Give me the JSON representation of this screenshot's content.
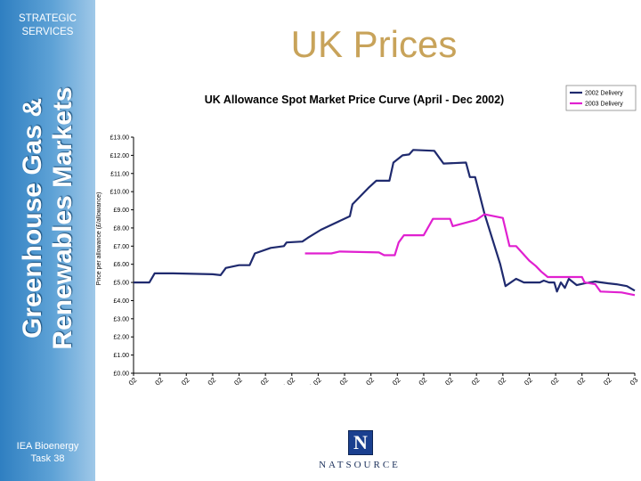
{
  "sidebar": {
    "top_label_line1": "STRATEGIC",
    "top_label_line2": "SERVICES",
    "vertical_title_line1": "Greenhouse Gas &",
    "vertical_title_line2": "Renewables Markets",
    "bottom_label_line1": "IEA Bioenergy",
    "bottom_label_line2": "Task 38"
  },
  "slide_title": "UK Prices",
  "logo": {
    "glyph": "N",
    "text": "NATSOURCE",
    "color": "#1a3f8f"
  },
  "chart_data": {
    "type": "line",
    "title": "UK Allowance Spot Market Price Curve (April - Dec 2002)",
    "ylabel": "Price per allowance (£/allowance)",
    "xlabel": "",
    "ylim": [
      0,
      13
    ],
    "xlim": [
      0,
      19
    ],
    "y_ticks": [
      "£0.00",
      "£1.00",
      "£2.00",
      "£3.00",
      "£4.00",
      "£5.00",
      "£6.00",
      "£7.00",
      "£8.00",
      "£9.00",
      "£10.00",
      "£11.00",
      "£12.00",
      "£13.00"
    ],
    "categories": [
      "Apr-02",
      "Apr-02",
      "May-02",
      "May-02",
      "Jun-02",
      "Jun-02",
      "Jul-02",
      "Jul-02",
      "Aug-02",
      "Aug-02",
      "Aug-02",
      "Sep-02",
      "Sep-02",
      "Oct-02",
      "Oct-02",
      "Nov-02",
      "Nov-02",
      "Dec-02",
      "Dec-02",
      "Jan-03"
    ],
    "grid": false,
    "legend_position": "top-right",
    "series": [
      {
        "name": "2002 Delivery",
        "color": "#1f2a6e",
        "points": [
          [
            0.0,
            5.0
          ],
          [
            0.6,
            5.0
          ],
          [
            0.8,
            5.5
          ],
          [
            1.5,
            5.5
          ],
          [
            3.0,
            5.45
          ],
          [
            3.3,
            5.4
          ],
          [
            3.5,
            5.8
          ],
          [
            4.0,
            5.95
          ],
          [
            4.4,
            5.95
          ],
          [
            4.6,
            6.6
          ],
          [
            5.2,
            6.9
          ],
          [
            5.7,
            7.0
          ],
          [
            5.8,
            7.2
          ],
          [
            6.4,
            7.25
          ],
          [
            6.6,
            7.45
          ],
          [
            7.1,
            7.9
          ],
          [
            8.2,
            8.65
          ],
          [
            8.3,
            9.3
          ],
          [
            8.9,
            10.2
          ],
          [
            9.2,
            10.6
          ],
          [
            9.7,
            10.6
          ],
          [
            9.85,
            11.6
          ],
          [
            10.2,
            12.0
          ],
          [
            10.45,
            12.05
          ],
          [
            10.6,
            12.3
          ],
          [
            11.4,
            12.25
          ],
          [
            11.75,
            11.55
          ],
          [
            12.6,
            11.6
          ],
          [
            12.75,
            10.8
          ],
          [
            12.95,
            10.8
          ],
          [
            13.3,
            8.8
          ],
          [
            13.9,
            6.0
          ],
          [
            14.1,
            4.8
          ],
          [
            14.5,
            5.2
          ],
          [
            14.8,
            5.0
          ],
          [
            15.4,
            5.0
          ],
          [
            15.55,
            5.1
          ],
          [
            15.75,
            5.0
          ],
          [
            15.95,
            5.0
          ],
          [
            16.05,
            4.5
          ],
          [
            16.2,
            5.0
          ],
          [
            16.35,
            4.7
          ],
          [
            16.5,
            5.2
          ],
          [
            16.8,
            4.85
          ],
          [
            17.1,
            4.95
          ],
          [
            17.5,
            5.05
          ],
          [
            18.0,
            4.95
          ],
          [
            18.3,
            4.9
          ],
          [
            18.7,
            4.8
          ],
          [
            19.0,
            4.55
          ]
        ]
      },
      {
        "name": "2003 Delivery",
        "color": "#e020d0",
        "points": [
          [
            6.5,
            6.6
          ],
          [
            7.5,
            6.6
          ],
          [
            7.8,
            6.7
          ],
          [
            9.3,
            6.65
          ],
          [
            9.5,
            6.5
          ],
          [
            9.9,
            6.5
          ],
          [
            10.05,
            7.2
          ],
          [
            10.25,
            7.6
          ],
          [
            11.0,
            7.6
          ],
          [
            11.35,
            8.5
          ],
          [
            12.0,
            8.5
          ],
          [
            12.1,
            8.1
          ],
          [
            13.0,
            8.45
          ],
          [
            13.3,
            8.75
          ],
          [
            14.0,
            8.55
          ],
          [
            14.25,
            7.0
          ],
          [
            14.5,
            7.0
          ],
          [
            15.0,
            6.2
          ],
          [
            15.25,
            5.9
          ],
          [
            15.45,
            5.6
          ],
          [
            15.7,
            5.3
          ],
          [
            17.0,
            5.3
          ],
          [
            17.1,
            5.0
          ],
          [
            17.5,
            4.9
          ],
          [
            17.7,
            4.5
          ],
          [
            18.5,
            4.45
          ],
          [
            19.0,
            4.3
          ]
        ]
      }
    ]
  }
}
